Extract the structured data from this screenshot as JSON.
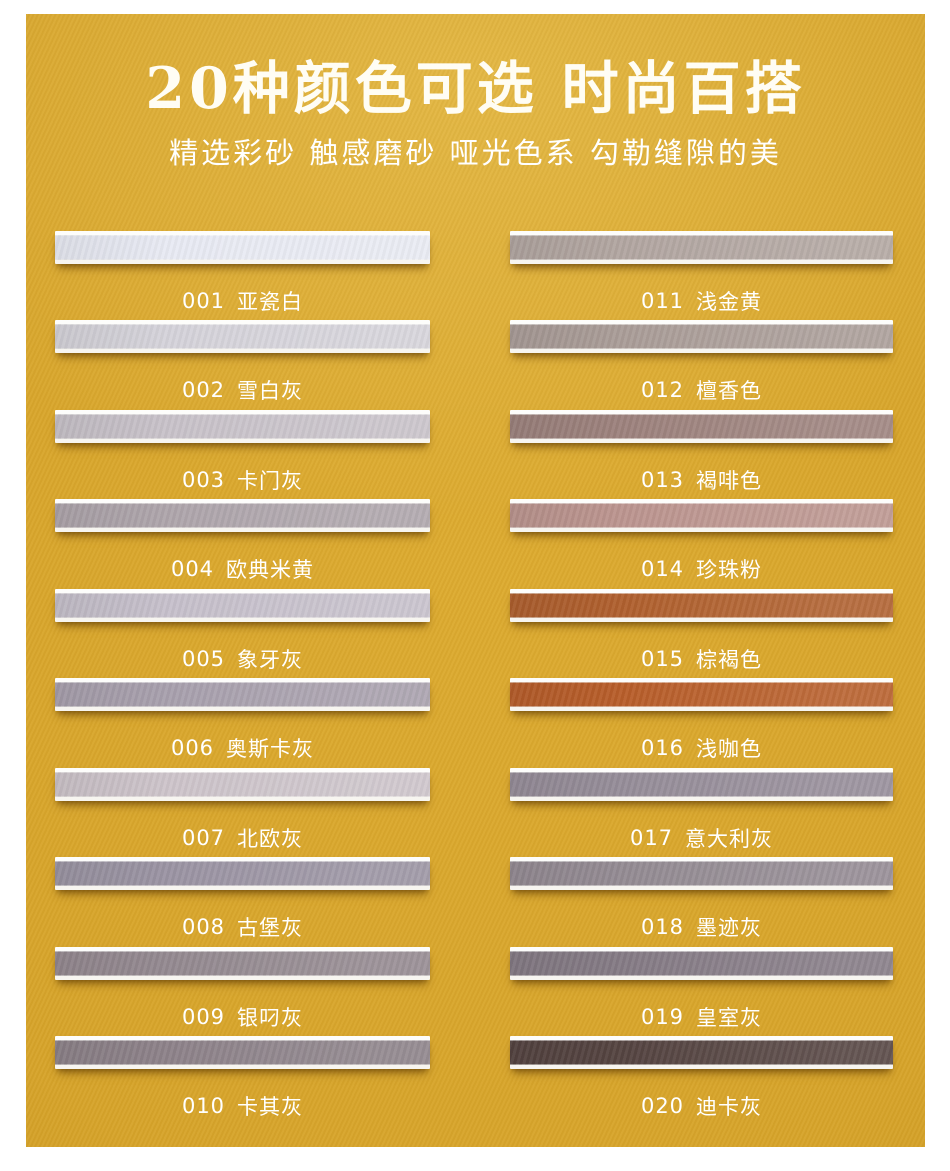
{
  "header": {
    "title": "20种颜色可选 时尚百搭",
    "subtitle": "精选彩砂 触感磨砂 哑光色系 勾勒缝隙的美"
  },
  "colors": {
    "page_background": "#ffffff",
    "panel_gold": "#d7a42a",
    "panel_gold_edge": "#c59221",
    "text": "#ffffff"
  },
  "swatches": [
    {
      "code": "001",
      "name": "亚瓷白",
      "color": "#e8eaf3"
    },
    {
      "code": "002",
      "name": "雪白灰",
      "color": "#d5d3da"
    },
    {
      "code": "003",
      "name": "卡门灰",
      "color": "#c8c2c9"
    },
    {
      "code": "004",
      "name": "欧典米黄",
      "color": "#aea5ab"
    },
    {
      "code": "005",
      "name": "象牙灰",
      "color": "#c6c0cb"
    },
    {
      "code": "006",
      "name": "奥斯卡灰",
      "color": "#a8a0ad"
    },
    {
      "code": "007",
      "name": "北欧灰",
      "color": "#cdc4ca"
    },
    {
      "code": "008",
      "name": "古堡灰",
      "color": "#9b94a3"
    },
    {
      "code": "009",
      "name": "银叼灰",
      "color": "#948990"
    },
    {
      "code": "010",
      "name": "卡其灰",
      "color": "#8d8289"
    },
    {
      "code": "011",
      "name": "浅金黄",
      "color": "#b2a6a1"
    },
    {
      "code": "012",
      "name": "檀香色",
      "color": "#aa9d98"
    },
    {
      "code": "013",
      "name": "褐啡色",
      "color": "#9d827d"
    },
    {
      "code": "014",
      "name": "珍珠粉",
      "color": "#bc958f"
    },
    {
      "code": "015",
      "name": "棕褐色",
      "color": "#b0602e"
    },
    {
      "code": "016",
      "name": "浅咖色",
      "color": "#b85e2a"
    },
    {
      "code": "017",
      "name": "意大利灰",
      "color": "#968d99"
    },
    {
      "code": "018",
      "name": "墨迹灰",
      "color": "#948b93"
    },
    {
      "code": "019",
      "name": "皇室灰",
      "color": "#857b85"
    },
    {
      "code": "020",
      "name": "迪卡灰",
      "color": "#554441"
    }
  ]
}
